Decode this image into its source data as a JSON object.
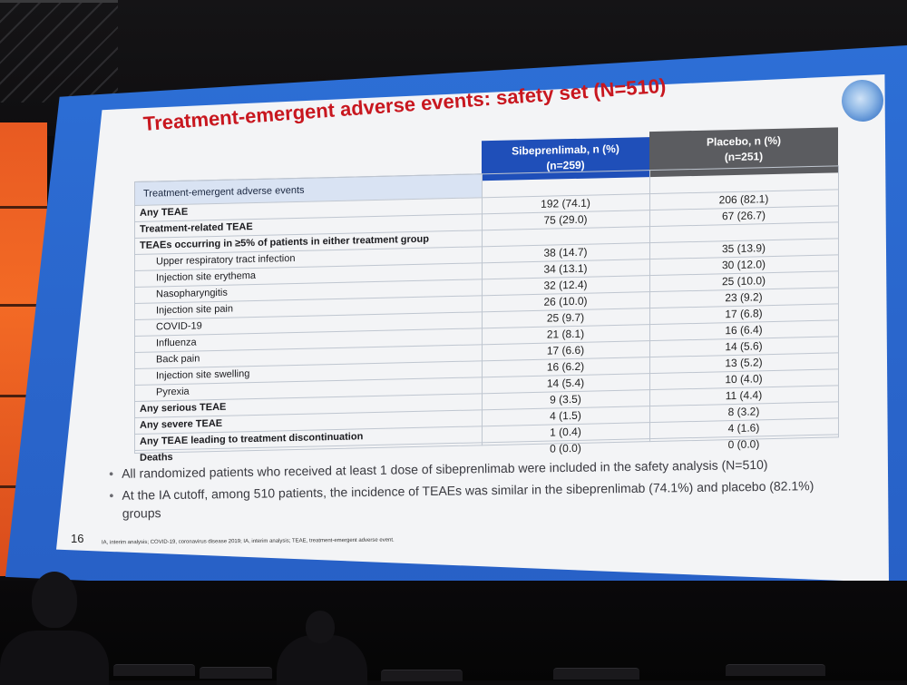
{
  "slide": {
    "title": "Treatment-emergent adverse events: safety set (N=510)",
    "page_number": "16",
    "footnote": "IA, interim analysis; COVID-19, coronavirus disease 2019; IA, interim analysis; TEAE, treatment-emergent adverse event.",
    "colors": {
      "title": "#c8171f",
      "sibeprenlimab_header": "#1f4fb9",
      "placebo_header": "#5b5c60",
      "screen_blue": "#2d6fd6"
    }
  },
  "table": {
    "column_label": "Treatment-emergent adverse events",
    "sibeprenlimab_header_line1": "Sibeprenlimab, n (%)",
    "sibeprenlimab_header_line2": "(n=259)",
    "placebo_header_line1": "Placebo, n (%)",
    "placebo_header_line2": "(n=251)",
    "rows": [
      {
        "label": "Any TEAE",
        "style": "bold",
        "sib": "192 (74.1)",
        "pla": "206 (82.1)"
      },
      {
        "label": "Treatment-related TEAE",
        "style": "bold",
        "sib": "75 (29.0)",
        "pla": "67 (26.7)"
      },
      {
        "label": "TEAEs occurring in ≥5% of patients in either treatment group",
        "style": "bold",
        "sib": "",
        "pla": ""
      },
      {
        "label": "Upper respiratory tract infection",
        "style": "indent",
        "sib": "38 (14.7)",
        "pla": "35 (13.9)"
      },
      {
        "label": "Injection site erythema",
        "style": "indent",
        "sib": "34 (13.1)",
        "pla": "30 (12.0)"
      },
      {
        "label": "Nasopharyngitis",
        "style": "indent",
        "sib": "32 (12.4)",
        "pla": "25 (10.0)"
      },
      {
        "label": "Injection site pain",
        "style": "indent",
        "sib": "26 (10.0)",
        "pla": "23 (9.2)"
      },
      {
        "label": "COVID-19",
        "style": "indent",
        "sib": "25 (9.7)",
        "pla": "17 (6.8)"
      },
      {
        "label": "Influenza",
        "style": "indent",
        "sib": "21 (8.1)",
        "pla": "16 (6.4)"
      },
      {
        "label": "Back pain",
        "style": "indent",
        "sib": "17 (6.6)",
        "pla": "14 (5.6)"
      },
      {
        "label": "Injection site swelling",
        "style": "indent",
        "sib": "16 (6.2)",
        "pla": "13 (5.2)"
      },
      {
        "label": "Pyrexia",
        "style": "indent",
        "sib": "14 (5.4)",
        "pla": "10 (4.0)"
      },
      {
        "label": "Any serious TEAE",
        "style": "bold",
        "sib": "9 (3.5)",
        "pla": "11 (4.4)"
      },
      {
        "label": "Any severe TEAE",
        "style": "bold",
        "sib": "4 (1.5)",
        "pla": "8 (3.2)"
      },
      {
        "label": "Any TEAE leading to treatment discontinuation",
        "style": "bold",
        "sib": "1 (0.4)",
        "pla": "4 (1.6)"
      },
      {
        "label": "Deaths",
        "style": "bold",
        "sib": "0 (0.0)",
        "pla": "0 (0.0)"
      }
    ]
  },
  "bullets": [
    "All randomized patients who received at least 1 dose of sibeprenlimab were included in the safety analysis (N=510)",
    "At the IA cutoff, among 510 patients, the incidence of TEAEs was similar in the sibeprenlimab (74.1%) and placebo (82.1%) groups"
  ]
}
